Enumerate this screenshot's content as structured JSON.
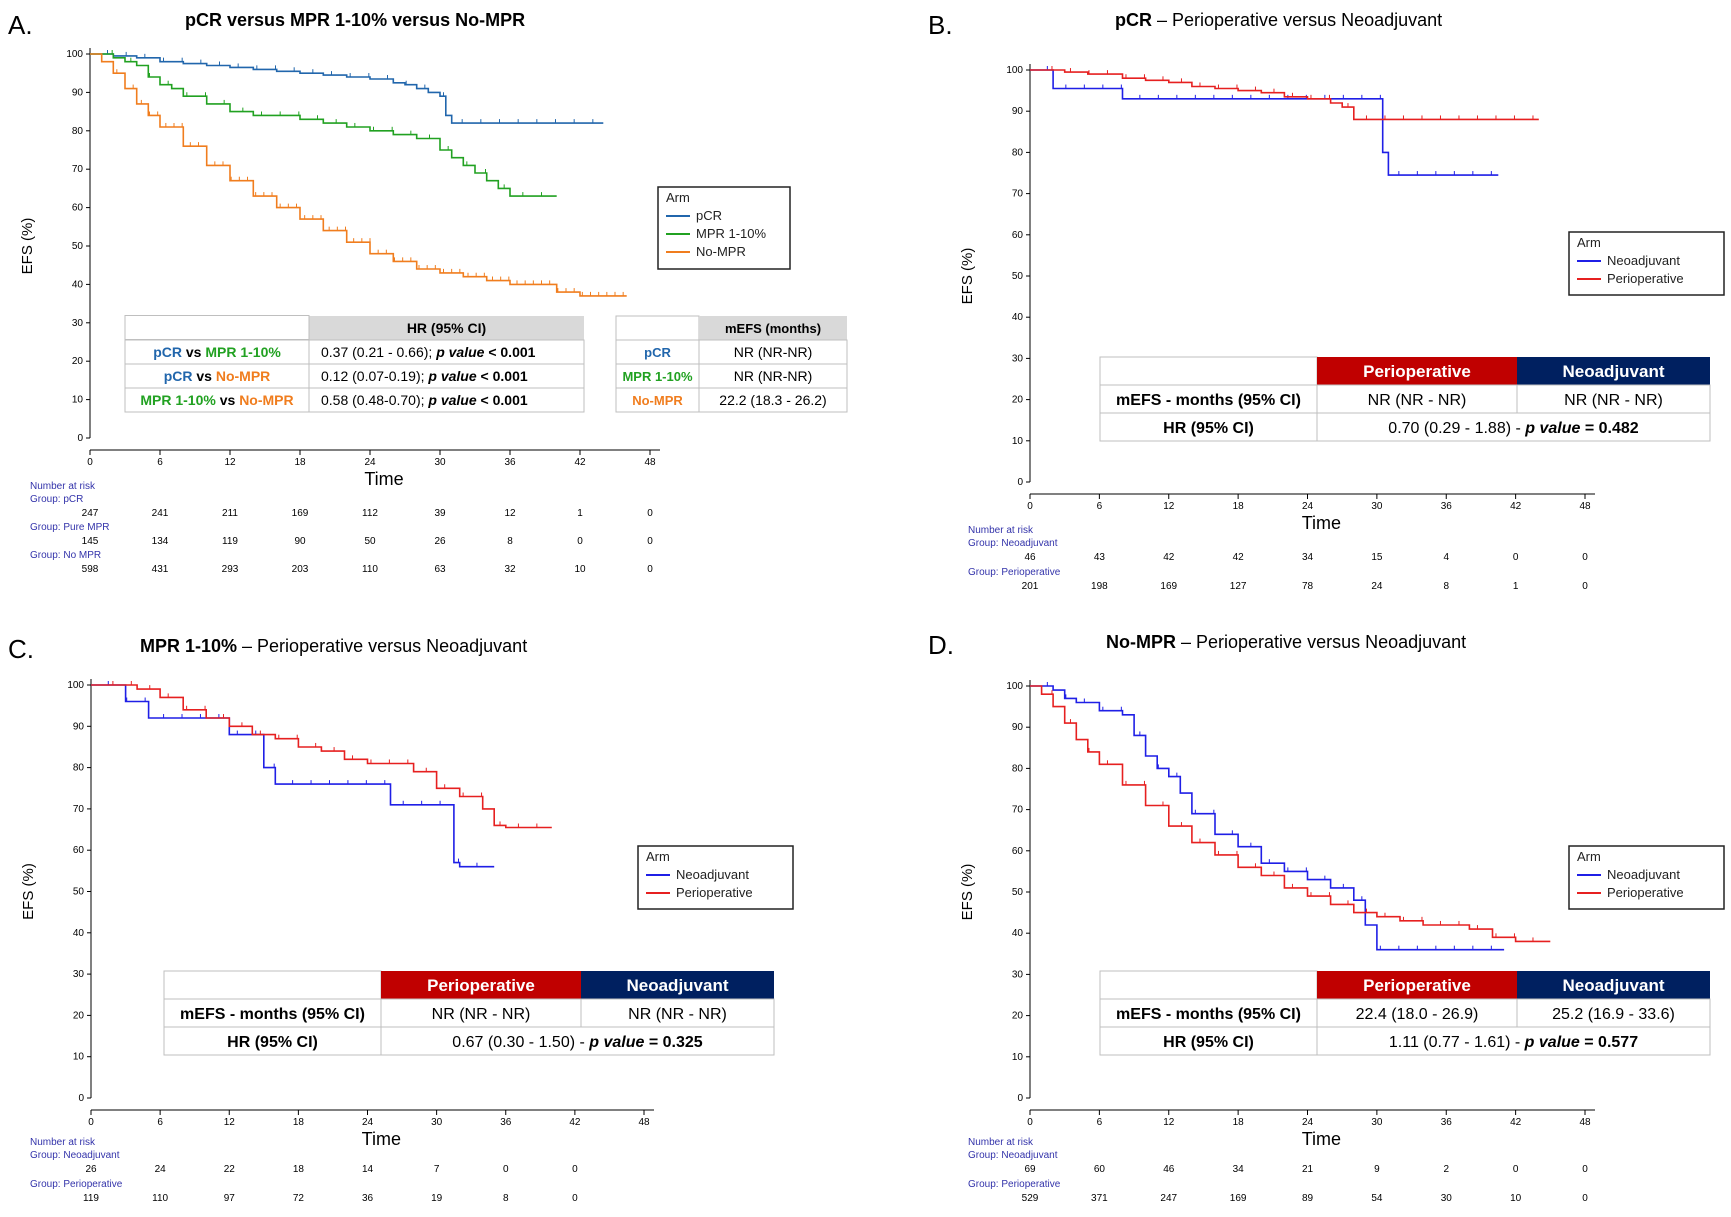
{
  "colors": {
    "pcr": "#2166ac",
    "mpr": "#21a121",
    "nompr": "#f07d1e",
    "neo": "#1f1fe6",
    "peri": "#e62020",
    "peri_header": "#c00000",
    "neo_header": "#002060",
    "risk_text": "#3333aa"
  },
  "chart_data": [
    {
      "type": "line",
      "panel": "A.",
      "title_bold": "pCR versus MPR 1-10% versus No-MPR",
      "title_rest": "",
      "xlabel": "Time",
      "ylabel": "EFS (%)",
      "xlim": [
        0,
        48
      ],
      "ylim": [
        0,
        100
      ],
      "xticks": [
        0,
        6,
        12,
        18,
        24,
        30,
        36,
        42,
        48
      ],
      "yticks": [
        0,
        10,
        20,
        30,
        40,
        50,
        60,
        70,
        80,
        90,
        100
      ],
      "legend": {
        "title": "Arm",
        "position": "right",
        "items": [
          "pCR",
          "MPR 1-10%",
          "No-MPR"
        ]
      },
      "series": [
        {
          "name": "pCR",
          "color": "pcr",
          "x": [
            0,
            2,
            4,
            6,
            8,
            10,
            12,
            14,
            16,
            18,
            20,
            22,
            24,
            26,
            27,
            28,
            29,
            30,
            30.5,
            31,
            32,
            34,
            36,
            38,
            40,
            42,
            44
          ],
          "y": [
            100,
            99.5,
            99,
            98,
            97.5,
            97,
            96.5,
            96,
            95.5,
            95,
            94.5,
            94,
            93.5,
            92.5,
            92,
            91,
            90,
            89,
            84,
            82,
            82,
            82,
            82,
            82,
            82,
            82,
            82
          ]
        },
        {
          "name": "MPR 1-10%",
          "color": "mpr",
          "x": [
            0,
            2,
            3,
            4,
            5,
            6,
            7,
            8,
            10,
            12,
            14,
            16,
            18,
            20,
            22,
            24,
            26,
            28,
            30,
            31,
            32,
            33,
            34,
            35,
            36,
            38,
            40
          ],
          "y": [
            100,
            99,
            98,
            97,
            94,
            92,
            91,
            89,
            87,
            85,
            84,
            84,
            83,
            82,
            81,
            80,
            79,
            78,
            75,
            73,
            71,
            69,
            67,
            65,
            63,
            63,
            63
          ]
        },
        {
          "name": "No-MPR",
          "color": "nompr",
          "x": [
            0,
            1,
            2,
            3,
            4,
            5,
            6,
            8,
            10,
            12,
            14,
            16,
            18,
            20,
            22,
            24,
            26,
            28,
            30,
            32,
            34,
            36,
            38,
            40,
            42,
            44,
            46
          ],
          "y": [
            100,
            98,
            95,
            91,
            87,
            84,
            81,
            76,
            71,
            67,
            63,
            60,
            57,
            54,
            51,
            48,
            46,
            44,
            43,
            42,
            41,
            40,
            40,
            38,
            37,
            37,
            37
          ]
        }
      ],
      "hr_table": {
        "header": "HR (95% CI)",
        "rows": [
          {
            "a": "pCR",
            "a_color": "pcr",
            "b": "MPR 1-10%",
            "b_color": "mpr",
            "text": "0.37 (0.21 - 0.66); ",
            "pval": "< 0.001"
          },
          {
            "a": "pCR",
            "a_color": "pcr",
            "b": "No-MPR",
            "b_color": "nompr",
            "text": "0.12 (0.07-0.19); ",
            "pval": "< 0.001"
          },
          {
            "a": "MPR 1-10%",
            "a_color": "mpr",
            "b": "No-MPR",
            "b_color": "nompr",
            "text": "0.58 (0.48-0.70); ",
            "pval": "< 0.001"
          }
        ],
        "vs": "vs",
        "pvalue_label": "p value"
      },
      "mefs_table": {
        "header": "mEFS (months)",
        "rows": [
          {
            "label": "pCR",
            "color": "pcr",
            "value": "NR (NR-NR)"
          },
          {
            "label": "MPR 1-10%",
            "color": "mpr",
            "value": "NR (NR-NR)"
          },
          {
            "label": "No-MPR",
            "color": "nompr",
            "value": "22.2 (18.3 - 26.2)"
          }
        ]
      },
      "risk": {
        "title": "Number at risk",
        "groups": [
          {
            "label": "Group: pCR",
            "values": [
              "247",
              "241",
              "211",
              "169",
              "112",
              "39",
              "12",
              "1",
              "0"
            ]
          },
          {
            "label": "Group: Pure MPR",
            "values": [
              "145",
              "134",
              "119",
              "90",
              "50",
              "26",
              "8",
              "0",
              "0"
            ]
          },
          {
            "label": "Group: No MPR",
            "values": [
              "598",
              "431",
              "293",
              "203",
              "110",
              "63",
              "32",
              "10",
              "0"
            ]
          }
        ]
      }
    },
    {
      "type": "line",
      "panel": "B.",
      "title_bold": "pCR",
      "title_rest": " – Perioperative versus Neoadjuvant",
      "xlabel": "Time",
      "ylabel": "EFS (%)",
      "xlim": [
        0,
        48
      ],
      "ylim": [
        0,
        100
      ],
      "xticks": [
        0,
        6,
        12,
        18,
        24,
        30,
        36,
        42,
        48
      ],
      "yticks": [
        0,
        10,
        20,
        30,
        40,
        50,
        60,
        70,
        80,
        90,
        100
      ],
      "legend": {
        "title": "Arm",
        "position": "right",
        "items": [
          "Neoadjuvant",
          "Perioperative"
        ]
      },
      "series": [
        {
          "name": "Neoadjuvant",
          "color": "neo",
          "x": [
            0,
            2,
            5,
            8,
            14,
            20,
            26,
            30,
            30.5,
            31,
            34,
            40.5
          ],
          "y": [
            100,
            95.5,
            95.5,
            93,
            93,
            93,
            93,
            93,
            80,
            74.5,
            74.5,
            74.5
          ]
        },
        {
          "name": "Perioperative",
          "color": "peri",
          "x": [
            0,
            3,
            5,
            8,
            10,
            12,
            14,
            16,
            18,
            20,
            22,
            24,
            26,
            27,
            28,
            30,
            32,
            34,
            36,
            40,
            44
          ],
          "y": [
            100,
            99.5,
            99,
            98,
            97.5,
            97,
            96,
            95.5,
            95,
            94.5,
            93.5,
            93,
            92,
            91,
            88,
            88,
            88,
            88,
            88,
            88,
            88
          ]
        }
      ],
      "table": {
        "headers": [
          "Perioperative",
          "Neoadjuvant"
        ],
        "rows": [
          {
            "label": "mEFS - months (95% CI)",
            "cells": [
              "NR (NR - NR)",
              "NR (NR - NR)"
            ]
          },
          {
            "label": "HR (95% CI)",
            "hr": "0.70 (0.29 - 1.88) - ",
            "pvalue_label": "p value",
            "pvalue": " = 0.482"
          }
        ]
      },
      "risk": {
        "title": "Number at risk",
        "groups": [
          {
            "label": "Group: Neoadjuvant",
            "values": [
              "46",
              "43",
              "42",
              "42",
              "34",
              "15",
              "4",
              "0",
              "0"
            ]
          },
          {
            "label": "Group: Perioperative",
            "values": [
              "201",
              "198",
              "169",
              "127",
              "78",
              "24",
              "8",
              "1",
              "0"
            ]
          }
        ]
      }
    },
    {
      "type": "line",
      "panel": "C.",
      "title_bold": "MPR 1-10%",
      "title_rest": "  – Perioperative versus Neoadjuvant",
      "xlabel": "Time",
      "ylabel": "EFS (%)",
      "xlim": [
        0,
        48
      ],
      "ylim": [
        0,
        100
      ],
      "xticks": [
        0,
        6,
        12,
        18,
        24,
        30,
        36,
        42,
        48
      ],
      "yticks": [
        0,
        10,
        20,
        30,
        40,
        50,
        60,
        70,
        80,
        90,
        100
      ],
      "legend": {
        "title": "Arm",
        "position": "right",
        "items": [
          "Neoadjuvant",
          "Perioperative"
        ]
      },
      "series": [
        {
          "name": "Neoadjuvant",
          "color": "neo",
          "x": [
            0,
            2,
            3,
            5,
            8,
            12,
            14,
            15,
            16,
            18,
            20,
            24,
            26,
            28,
            31,
            31.5,
            32,
            35
          ],
          "y": [
            100,
            100,
            96,
            92,
            92,
            88,
            88,
            80,
            76,
            76,
            76,
            76,
            71,
            71,
            71,
            57,
            56,
            56
          ]
        },
        {
          "name": "Perioperative",
          "color": "peri",
          "x": [
            0,
            4,
            6,
            8,
            10,
            12,
            14,
            16,
            18,
            20,
            22,
            24,
            26,
            28,
            30,
            32,
            34,
            35,
            36,
            40
          ],
          "y": [
            100,
            99,
            97,
            94,
            92,
            90,
            88,
            87,
            85,
            84,
            82,
            81,
            81,
            79,
            75,
            73,
            70,
            66,
            65.5,
            65.5
          ]
        }
      ],
      "table": {
        "headers": [
          "Perioperative",
          "Neoadjuvant"
        ],
        "rows": [
          {
            "label": "mEFS - months (95% CI)",
            "cells": [
              "NR (NR - NR)",
              "NR (NR - NR)"
            ]
          },
          {
            "label": "HR (95% CI)",
            "hr": "0.67 (0.30 - 1.50) - ",
            "pvalue_label": "p value",
            "pvalue": " = 0.325"
          }
        ]
      },
      "risk": {
        "title": "Number at risk",
        "groups": [
          {
            "label": "Group: Neoadjuvant",
            "values": [
              "26",
              "24",
              "22",
              "18",
              "14",
              "7",
              "0",
              "0",
              ""
            ]
          },
          {
            "label": "Group: Perioperative",
            "values": [
              "119",
              "110",
              "97",
              "72",
              "36",
              "19",
              "8",
              "0",
              ""
            ]
          }
        ]
      }
    },
    {
      "type": "line",
      "panel": "D.",
      "title_bold": "No-MPR",
      "title_rest": "  – Perioperative versus Neoadjuvant",
      "xlabel": "Time",
      "ylabel": "EFS (%)",
      "xlim": [
        0,
        48
      ],
      "ylim": [
        0,
        100
      ],
      "xticks": [
        0,
        6,
        12,
        18,
        24,
        30,
        36,
        42,
        48
      ],
      "yticks": [
        0,
        10,
        20,
        30,
        40,
        50,
        60,
        70,
        80,
        90,
        100
      ],
      "legend": {
        "title": "Arm",
        "position": "right",
        "items": [
          "Neoadjuvant",
          "Perioperative"
        ]
      },
      "series": [
        {
          "name": "Neoadjuvant",
          "color": "neo",
          "x": [
            0,
            2,
            3,
            4,
            6,
            8,
            9,
            10,
            11,
            12,
            13,
            14,
            16,
            18,
            20,
            22,
            24,
            26,
            28,
            29,
            30,
            32,
            34,
            36,
            38,
            41
          ],
          "y": [
            100,
            99,
            97,
            96,
            94,
            93,
            88,
            83,
            80,
            78,
            74,
            69,
            64,
            61,
            57,
            55,
            53,
            51,
            48,
            42,
            36,
            36,
            36,
            36,
            36,
            36
          ]
        },
        {
          "name": "Perioperative",
          "color": "peri",
          "x": [
            0,
            1,
            2,
            3,
            4,
            5,
            6,
            8,
            10,
            12,
            14,
            16,
            18,
            20,
            22,
            24,
            26,
            28,
            30,
            32,
            34,
            36,
            38,
            40,
            42,
            45
          ],
          "y": [
            100,
            98,
            95,
            91,
            87,
            84,
            81,
            76,
            71,
            66,
            62,
            59,
            56,
            54,
            51,
            49,
            47,
            45,
            44,
            43,
            42,
            42,
            41,
            39,
            38,
            38
          ]
        }
      ],
      "table": {
        "headers": [
          "Perioperative",
          "Neoadjuvant"
        ],
        "rows": [
          {
            "label": "mEFS - months (95% CI)",
            "cells": [
              "22.4 (18.0 - 26.9)",
              "25.2 (16.9 - 33.6)"
            ]
          },
          {
            "label": "HR (95% CI)",
            "hr": "1.11 (0.77 - 1.61) - ",
            "pvalue_label": "p value",
            "pvalue": " = 0.577"
          }
        ]
      },
      "risk": {
        "title": "Number at risk",
        "groups": [
          {
            "label": "Group: Neoadjuvant",
            "values": [
              "69",
              "60",
              "46",
              "34",
              "21",
              "9",
              "2",
              "0",
              "0"
            ]
          },
          {
            "label": "Group: Perioperative",
            "values": [
              "529",
              "371",
              "247",
              "169",
              "89",
              "54",
              "30",
              "10",
              "0"
            ]
          }
        ]
      }
    }
  ]
}
